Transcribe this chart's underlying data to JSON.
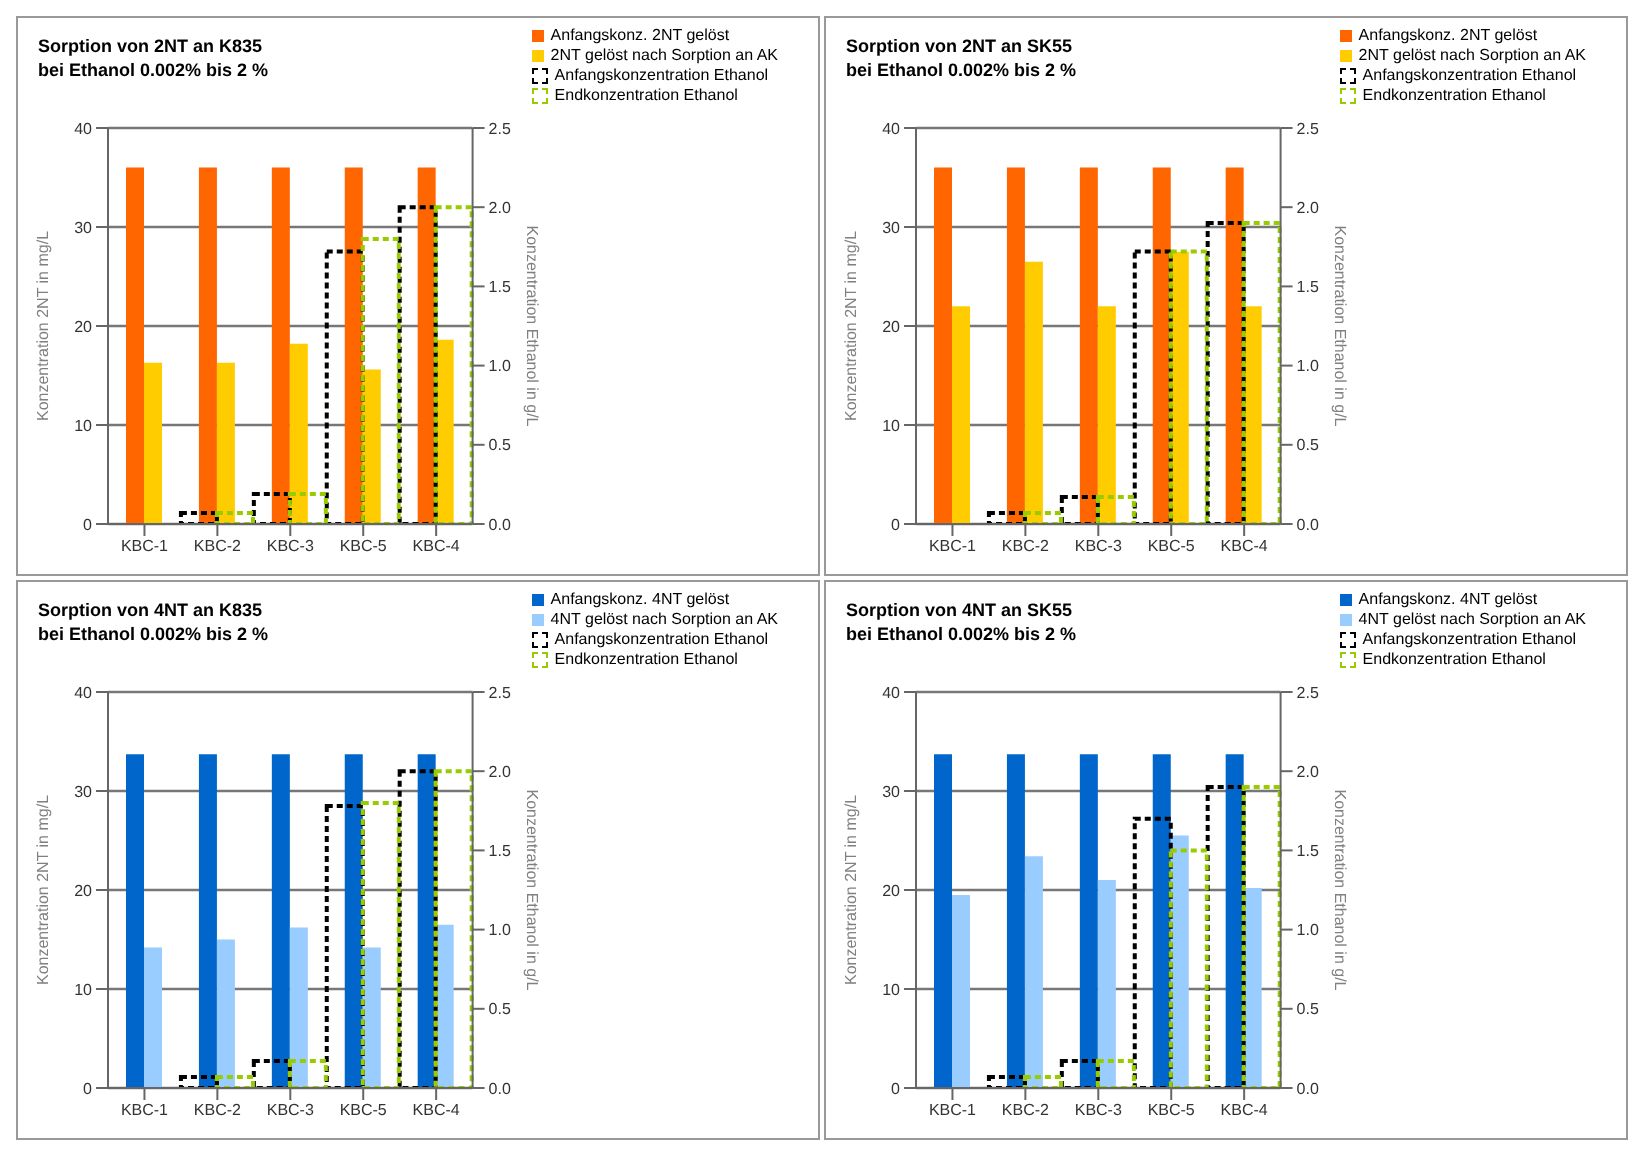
{
  "chart_data": [
    {
      "type": "bar",
      "title": "Sorption von 2NT an K835",
      "subtitle": "bei Ethanol 0.002% bis 2 %",
      "categories": [
        "KBC-1",
        "KBC-2",
        "KBC-3",
        "KBC-5",
        "KBC-4"
      ],
      "ylabel": "Konzentration 2NT in mg/L",
      "y2label": "Konzentration Ethanol in g/L",
      "ylim": [
        0,
        40
      ],
      "yticks": [
        0,
        10,
        20,
        30,
        40
      ],
      "y2lim": [
        0,
        2.5
      ],
      "y2ticks": [
        {
          "value": 0,
          "label": "0.0"
        },
        {
          "value": 0.5,
          "label": "0.5"
        },
        {
          "value": 1,
          "label": "1.0"
        },
        {
          "value": 1.5,
          "label": "1.5"
        },
        {
          "value": 2,
          "label": "2.0"
        },
        {
          "value": 2.5,
          "label": "2.5"
        }
      ],
      "grid": "y",
      "legend": "top right",
      "series": [
        {
          "name": "Anfangskonz. 2NT gelöst",
          "color": "#ff6600",
          "values": [
            36,
            36,
            36,
            36,
            36
          ]
        },
        {
          "name": "2NT gelöst nach Sorption an AK",
          "color": "#ffcc00",
          "values": [
            16.3,
            16.3,
            18.2,
            15.6,
            18.6
          ]
        },
        {
          "name": "Anfangskonzentration Ethanol",
          "color": "#000000",
          "axis": "y2",
          "line_style": "dashed",
          "values": [
            0,
            0.07,
            0.19,
            1.72,
            2.0
          ]
        },
        {
          "name": "Endkonzentration Ethanol",
          "color": "#99cc00",
          "axis": "y2",
          "line_style": "dashed",
          "values": [
            0,
            0.07,
            0.19,
            1.8,
            2.0
          ]
        }
      ]
    },
    {
      "type": "bar",
      "title": "Sorption von 2NT an SK55",
      "subtitle": "bei Ethanol 0.002% bis 2 %",
      "categories": [
        "KBC-1",
        "KBC-2",
        "KBC-3",
        "KBC-5",
        "KBC-4"
      ],
      "ylabel": "Konzentration 2NT in mg/L",
      "y2label": "Konzentration Ethanol in g/L",
      "ylim": [
        0,
        40
      ],
      "yticks": [
        0,
        10,
        20,
        30,
        40
      ],
      "y2lim": [
        0,
        2.5
      ],
      "y2ticks": [
        {
          "value": 0,
          "label": "0.0"
        },
        {
          "value": 0.5,
          "label": "0.5"
        },
        {
          "value": 1,
          "label": "1.0"
        },
        {
          "value": 1.5,
          "label": "1.5"
        },
        {
          "value": 2,
          "label": "2.0"
        },
        {
          "value": 2.5,
          "label": "2.5"
        }
      ],
      "grid": "y",
      "legend": "top right",
      "series": [
        {
          "name": "Anfangskonz. 2NT gelöst",
          "color": "#ff6600",
          "values": [
            36,
            36,
            36,
            36,
            36
          ]
        },
        {
          "name": "2NT gelöst nach Sorption an AK",
          "color": "#ffcc00",
          "values": [
            22,
            26.5,
            22,
            27.5,
            22
          ]
        },
        {
          "name": "Anfangskonzentration Ethanol",
          "color": "#000000",
          "axis": "y2",
          "line_style": "dashed",
          "values": [
            0,
            0.07,
            0.17,
            1.72,
            1.9
          ]
        },
        {
          "name": "Endkonzentration Ethanol",
          "color": "#99cc00",
          "axis": "y2",
          "line_style": "dashed",
          "values": [
            0,
            0.07,
            0.17,
            1.72,
            1.9
          ]
        }
      ]
    },
    {
      "type": "bar",
      "title": "Sorption von 4NT an K835",
      "subtitle": "bei Ethanol 0.002% bis 2 %",
      "categories": [
        "KBC-1",
        "KBC-2",
        "KBC-3",
        "KBC-5",
        "KBC-4"
      ],
      "ylabel": "Konzentration 2NT in mg/L",
      "y2label": "Konzentration Ethanol in g/L",
      "ylim": [
        0,
        40
      ],
      "yticks": [
        0,
        10,
        20,
        30,
        40
      ],
      "y2lim": [
        0,
        2.5
      ],
      "y2ticks": [
        {
          "value": 0,
          "label": "0.0"
        },
        {
          "value": 0.5,
          "label": "0.5"
        },
        {
          "value": 1,
          "label": "1.0"
        },
        {
          "value": 1.5,
          "label": "1.5"
        },
        {
          "value": 2,
          "label": "2.0"
        },
        {
          "value": 2.5,
          "label": "2.5"
        }
      ],
      "grid": "y",
      "legend": "top right",
      "series": [
        {
          "name": "Anfangskonz. 4NT gelöst",
          "color": "#0066cc",
          "values": [
            33.7,
            33.7,
            33.7,
            33.7,
            33.7
          ]
        },
        {
          "name": "4NT gelöst nach Sorption an AK",
          "color": "#99ccff",
          "values": [
            14.2,
            15,
            16.2,
            14.2,
            16.5
          ]
        },
        {
          "name": "Anfangskonzentration Ethanol",
          "color": "#000000",
          "axis": "y2",
          "line_style": "dashed",
          "values": [
            0,
            0.07,
            0.17,
            1.78,
            2.0
          ]
        },
        {
          "name": "Endkonzentration Ethanol",
          "color": "#99cc00",
          "axis": "y2",
          "line_style": "dashed",
          "values": [
            0,
            0.07,
            0.17,
            1.8,
            2.0
          ]
        }
      ]
    },
    {
      "type": "bar",
      "title": "Sorption von 4NT an SK55",
      "subtitle": "bei Ethanol 0.002% bis 2 %",
      "categories": [
        "KBC-1",
        "KBC-2",
        "KBC-3",
        "KBC-5",
        "KBC-4"
      ],
      "ylabel": "Konzentration 2NT in mg/L",
      "y2label": "Konzentration Ethanol in g/L",
      "ylim": [
        0,
        40
      ],
      "yticks": [
        0,
        10,
        20,
        30,
        40
      ],
      "y2lim": [
        0,
        2.5
      ],
      "y2ticks": [
        {
          "value": 0,
          "label": "0.0"
        },
        {
          "value": 0.5,
          "label": "0.5"
        },
        {
          "value": 1,
          "label": "1.0"
        },
        {
          "value": 1.5,
          "label": "1.5"
        },
        {
          "value": 2,
          "label": "2.0"
        },
        {
          "value": 2.5,
          "label": "2.5"
        }
      ],
      "grid": "y",
      "legend": "top right",
      "series": [
        {
          "name": "Anfangskonz. 4NT gelöst",
          "color": "#0066cc",
          "values": [
            33.7,
            33.7,
            33.7,
            33.7,
            33.7
          ]
        },
        {
          "name": "4NT gelöst nach Sorption an AK",
          "color": "#99ccff",
          "values": [
            19.5,
            23.4,
            21,
            25.5,
            20.2
          ]
        },
        {
          "name": "Anfangskonzentration Ethanol",
          "color": "#000000",
          "axis": "y2",
          "line_style": "dashed",
          "values": [
            0,
            0.07,
            0.17,
            1.7,
            1.9
          ]
        },
        {
          "name": "Endkonzentration Ethanol",
          "color": "#99cc00",
          "axis": "y2",
          "line_style": "dashed",
          "values": [
            0,
            0.07,
            0.17,
            1.5,
            1.9
          ]
        }
      ]
    }
  ]
}
